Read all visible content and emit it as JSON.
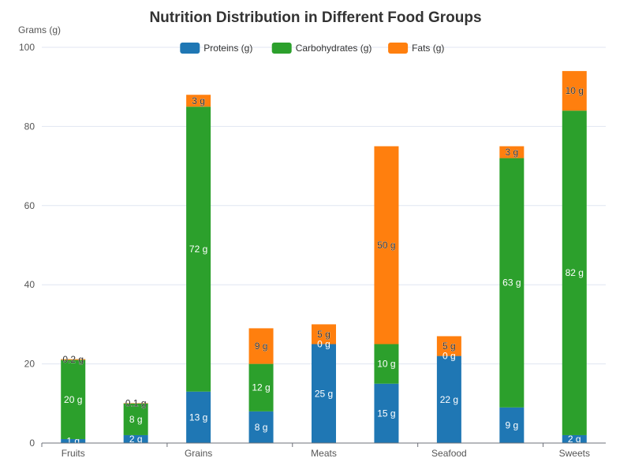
{
  "chart_data": {
    "type": "bar",
    "stacked": true,
    "title": "Nutrition Distribution in Different Food Groups",
    "ylabel": "Grams (g)",
    "xlabel": "",
    "ylim": [
      0,
      100
    ],
    "yticks": [
      0,
      20,
      40,
      60,
      80,
      100
    ],
    "categories": [
      "Fruits",
      "",
      "Grains",
      "",
      "Meats",
      "",
      "Seafood",
      "",
      "Sweets"
    ],
    "series": [
      {
        "name": "Proteins (g)",
        "color": "#1f77b4",
        "label_color": "#ffffff",
        "values": [
          1,
          2,
          13,
          8,
          25,
          15,
          22,
          9,
          2
        ]
      },
      {
        "name": "Carbohydrates (g)",
        "color": "#2ca02c",
        "label_color": "#ffffff",
        "values": [
          20,
          8,
          72,
          12,
          0,
          10,
          0,
          63,
          82
        ]
      },
      {
        "name": "Fats (g)",
        "color": "#ff7f0e",
        "label_color": "#333333",
        "values": [
          0.2,
          0.1,
          3,
          9,
          5,
          50,
          5,
          3,
          10
        ]
      }
    ],
    "data_labels": [
      [
        "1 g",
        "2 g",
        "13 g",
        "8 g",
        "25 g",
        "15 g",
        "22 g",
        "9 g",
        "2 g"
      ],
      [
        "20 g",
        "8 g",
        "72 g",
        "12 g",
        "0 g",
        "10 g",
        "0 g",
        "63 g",
        "82 g"
      ],
      [
        "0.2 g",
        "0.1 g",
        "3 g",
        "9 g",
        "5 g",
        "50 g",
        "5 g",
        "3 g",
        "10 g"
      ]
    ],
    "legend_position": "top-center",
    "grid": true
  }
}
